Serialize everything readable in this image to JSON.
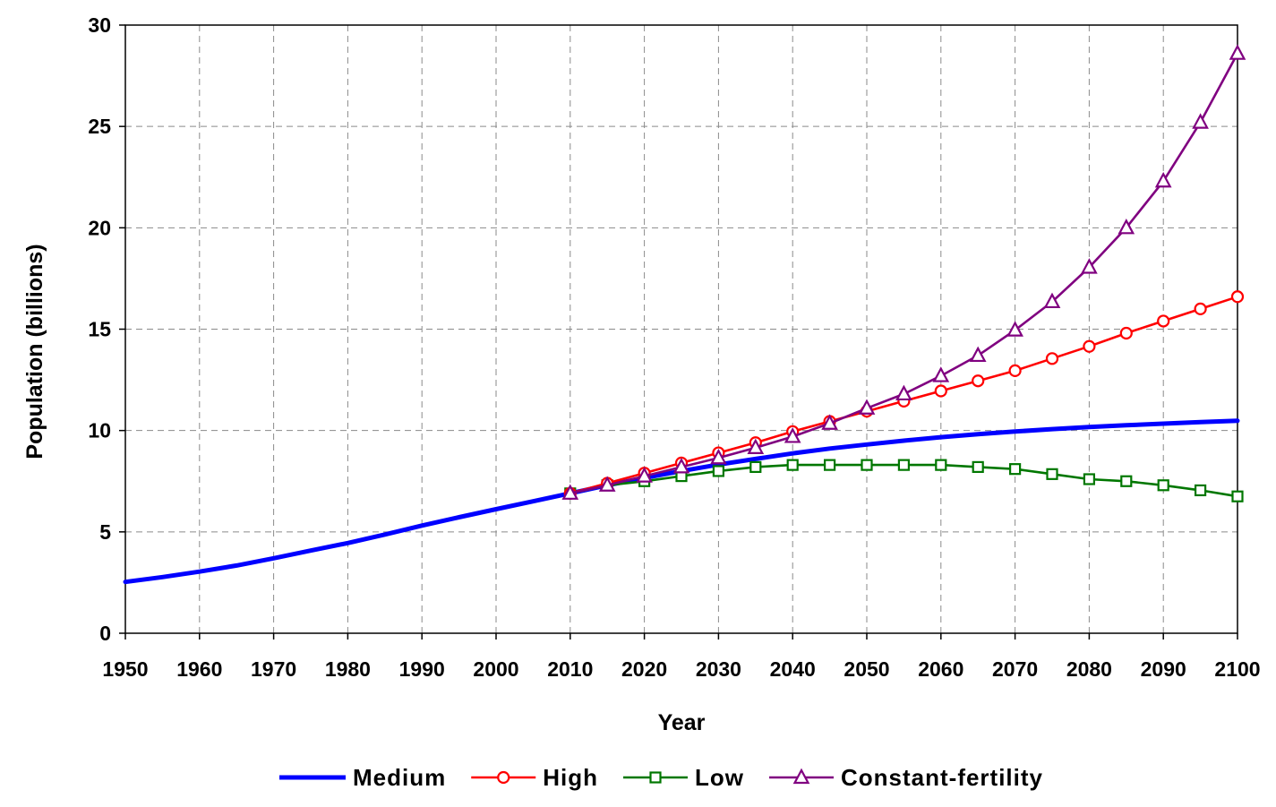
{
  "chart_data": {
    "type": "line",
    "title": "",
    "xlabel": "Year",
    "ylabel": "Population (billions)",
    "xlim": [
      1950,
      2100
    ],
    "ylim": [
      0,
      30
    ],
    "xticks": [
      1950,
      1960,
      1970,
      1980,
      1990,
      2000,
      2010,
      2020,
      2030,
      2040,
      2050,
      2060,
      2070,
      2080,
      2090,
      2100
    ],
    "yticks": [
      0,
      5,
      10,
      15,
      20,
      25,
      30
    ],
    "grid": true,
    "legend_position": "bottom",
    "series": [
      {
        "name": "Medium",
        "color": "#0000ff",
        "marker": "none",
        "x": [
          1950,
          1955,
          1960,
          1965,
          1970,
          1975,
          1980,
          1985,
          1990,
          1995,
          2000,
          2005,
          2010,
          2015,
          2020,
          2025,
          2030,
          2035,
          2040,
          2045,
          2050,
          2055,
          2060,
          2065,
          2070,
          2075,
          2080,
          2085,
          2090,
          2095,
          2100
        ],
        "values": [
          2.53,
          2.77,
          3.04,
          3.34,
          3.7,
          4.08,
          4.45,
          4.87,
          5.31,
          5.72,
          6.12,
          6.51,
          6.9,
          7.3,
          7.66,
          8.0,
          8.32,
          8.6,
          8.87,
          9.11,
          9.31,
          9.5,
          9.67,
          9.82,
          9.95,
          10.07,
          10.17,
          10.26,
          10.34,
          10.42,
          10.48
        ]
      },
      {
        "name": "High",
        "color": "#ff0000",
        "marker": "circle",
        "x": [
          2010,
          2015,
          2020,
          2025,
          2030,
          2035,
          2040,
          2045,
          2050,
          2055,
          2060,
          2065,
          2070,
          2075,
          2080,
          2085,
          2090,
          2095,
          2100
        ],
        "values": [
          6.9,
          7.4,
          7.9,
          8.4,
          8.9,
          9.4,
          9.95,
          10.45,
          10.95,
          11.45,
          11.95,
          12.45,
          12.95,
          13.55,
          14.15,
          14.8,
          15.4,
          16.0,
          16.6
        ]
      },
      {
        "name": "Low",
        "color": "#007700",
        "marker": "square",
        "x": [
          2010,
          2015,
          2020,
          2025,
          2030,
          2035,
          2040,
          2045,
          2050,
          2055,
          2060,
          2065,
          2070,
          2075,
          2080,
          2085,
          2090,
          2095,
          2100
        ],
        "values": [
          6.9,
          7.3,
          7.5,
          7.75,
          8.0,
          8.2,
          8.3,
          8.3,
          8.3,
          8.3,
          8.3,
          8.2,
          8.1,
          7.85,
          7.6,
          7.5,
          7.3,
          7.05,
          6.75
        ]
      },
      {
        "name": "Constant-fertility",
        "color": "#800080",
        "marker": "triangle",
        "x": [
          2010,
          2015,
          2020,
          2025,
          2030,
          2035,
          2040,
          2045,
          2050,
          2055,
          2060,
          2065,
          2070,
          2075,
          2080,
          2085,
          2090,
          2095,
          2100
        ],
        "values": [
          6.9,
          7.3,
          7.75,
          8.2,
          8.65,
          9.15,
          9.7,
          10.35,
          11.1,
          11.8,
          12.7,
          13.7,
          14.95,
          16.35,
          18.05,
          20.0,
          22.3,
          25.2,
          28.6
        ]
      }
    ]
  }
}
